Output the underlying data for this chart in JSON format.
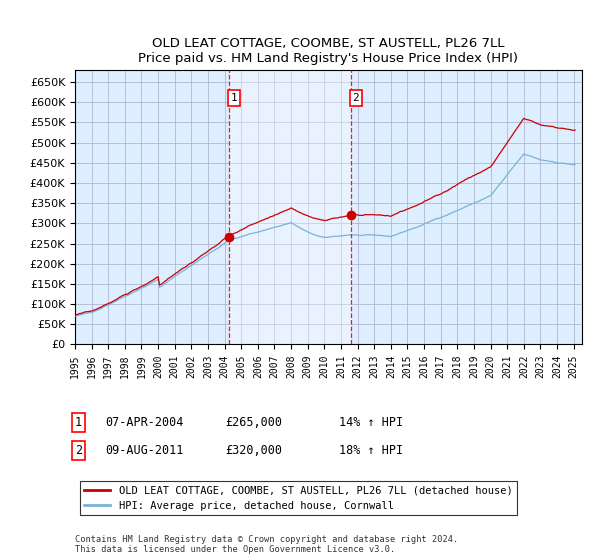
{
  "title": "OLD LEAT COTTAGE, COOMBE, ST AUSTELL, PL26 7LL",
  "subtitle": "Price paid vs. HM Land Registry's House Price Index (HPI)",
  "legend_line1": "OLD LEAT COTTAGE, COOMBE, ST AUSTELL, PL26 7LL (detached house)",
  "legend_line2": "HPI: Average price, detached house, Cornwall",
  "footnote": "Contains HM Land Registry data © Crown copyright and database right 2024.\nThis data is licensed under the Open Government Licence v3.0.",
  "sale1_date": "07-APR-2004",
  "sale1_price": "£265,000",
  "sale1_hpi": "14% ↑ HPI",
  "sale2_date": "09-AUG-2011",
  "sale2_price": "£320,000",
  "sale2_hpi": "18% ↑ HPI",
  "hpi_color": "#7ab3d8",
  "price_color": "#cc0000",
  "bg_color": "#ddeeff",
  "shade_color": "#cde4f5",
  "grid_color": "#aaaacc",
  "sale1_year": 2004.27,
  "sale1_value": 265000,
  "sale2_year": 2011.6,
  "sale2_value": 320000,
  "ylim_min": 0,
  "ylim_max": 680000,
  "xlim_min": 1995,
  "xlim_max": 2025.5,
  "yticks": [
    0,
    50000,
    100000,
    150000,
    200000,
    250000,
    300000,
    350000,
    400000,
    450000,
    500000,
    550000,
    600000,
    650000
  ],
  "xticks": [
    1995,
    1996,
    1997,
    1998,
    1999,
    2000,
    2001,
    2002,
    2003,
    2004,
    2005,
    2006,
    2007,
    2008,
    2009,
    2010,
    2011,
    2012,
    2013,
    2014,
    2015,
    2016,
    2017,
    2018,
    2019,
    2020,
    2021,
    2022,
    2023,
    2024,
    2025
  ]
}
